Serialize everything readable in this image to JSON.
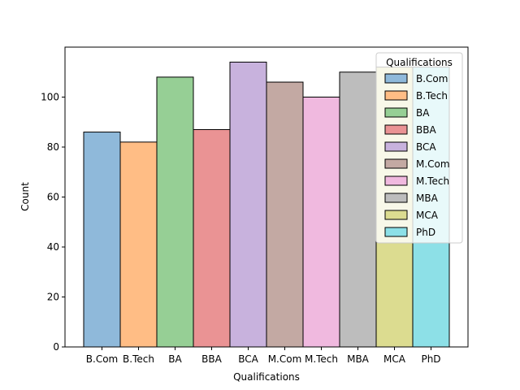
{
  "chart_data": {
    "type": "bar",
    "title": "",
    "xlabel": "Qualifications",
    "ylabel": "Count",
    "ylim": [
      0,
      120
    ],
    "yticks": [
      0,
      20,
      40,
      60,
      80,
      100
    ],
    "grid": false,
    "categories": [
      "B.Com",
      "B.Tech",
      "BA",
      "BBA",
      "BCA",
      "M.Com",
      "M.Tech",
      "MBA",
      "MCA",
      "PhD"
    ],
    "values": [
      86,
      82,
      108,
      87,
      114,
      106,
      100,
      110,
      112,
      112
    ],
    "colors": [
      "#8fb9da",
      "#ffbd85",
      "#96cf95",
      "#ea9394",
      "#c8b2dd",
      "#c3a9a3",
      "#f0b9df",
      "#bdbdbd",
      "#dcdc90",
      "#8de0e7"
    ],
    "legend": {
      "title": "Qualifications",
      "placement": "top-right",
      "entries": [
        "B.Com",
        "B.Tech",
        "BA",
        "BBA",
        "BCA",
        "M.Com",
        "M.Tech",
        "MBA",
        "MCA",
        "PhD"
      ]
    }
  }
}
